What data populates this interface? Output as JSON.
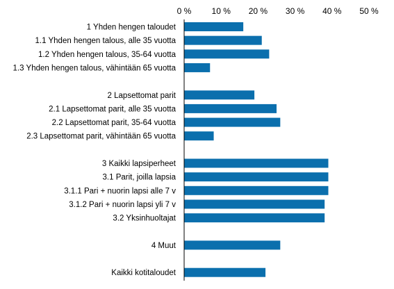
{
  "chart_data": {
    "type": "bar",
    "orientation": "horizontal",
    "title": "",
    "xlabel": "",
    "ylabel": "",
    "xlim": [
      0,
      50
    ],
    "ticks": [
      "0 %",
      "10 %",
      "20 %",
      "30 %",
      "40 %",
      "50 %"
    ],
    "grid": false,
    "legend": "none",
    "colors": {
      "bar": "#0b6fad"
    },
    "categories": [
      "1 Yhden hengen taloudet",
      "1.1 Yhden hengen talous, alle 35 vuotta",
      "1.2 Yhden hengen talous, 35-64 vuotta",
      "1.3 Yhden hengen talous, vähintään 65 vuotta",
      "",
      "2 Lapsettomat parit",
      "2.1 Lapsettomat parit, alle 35 vuotta",
      "2.2 Lapsettomat parit, 35-64 vuotta",
      "2.3 Lapsettomat parit, vähintään 65 vuotta",
      "",
      "3 Kaikki lapsiperheet",
      "3.1 Parit, joilla lapsia",
      "3.1.1 Pari + nuorin lapsi alle 7 v",
      "3.1.2 Pari + nuorin lapsi yli 7 v",
      "3.2 Yksinhuoltajat",
      "",
      "4 Muut",
      "",
      "Kaikki kotitaloudet"
    ],
    "values": [
      16,
      21,
      23,
      7,
      null,
      19,
      25,
      26,
      8,
      null,
      39,
      39,
      39,
      38,
      38,
      null,
      26,
      null,
      22
    ]
  }
}
